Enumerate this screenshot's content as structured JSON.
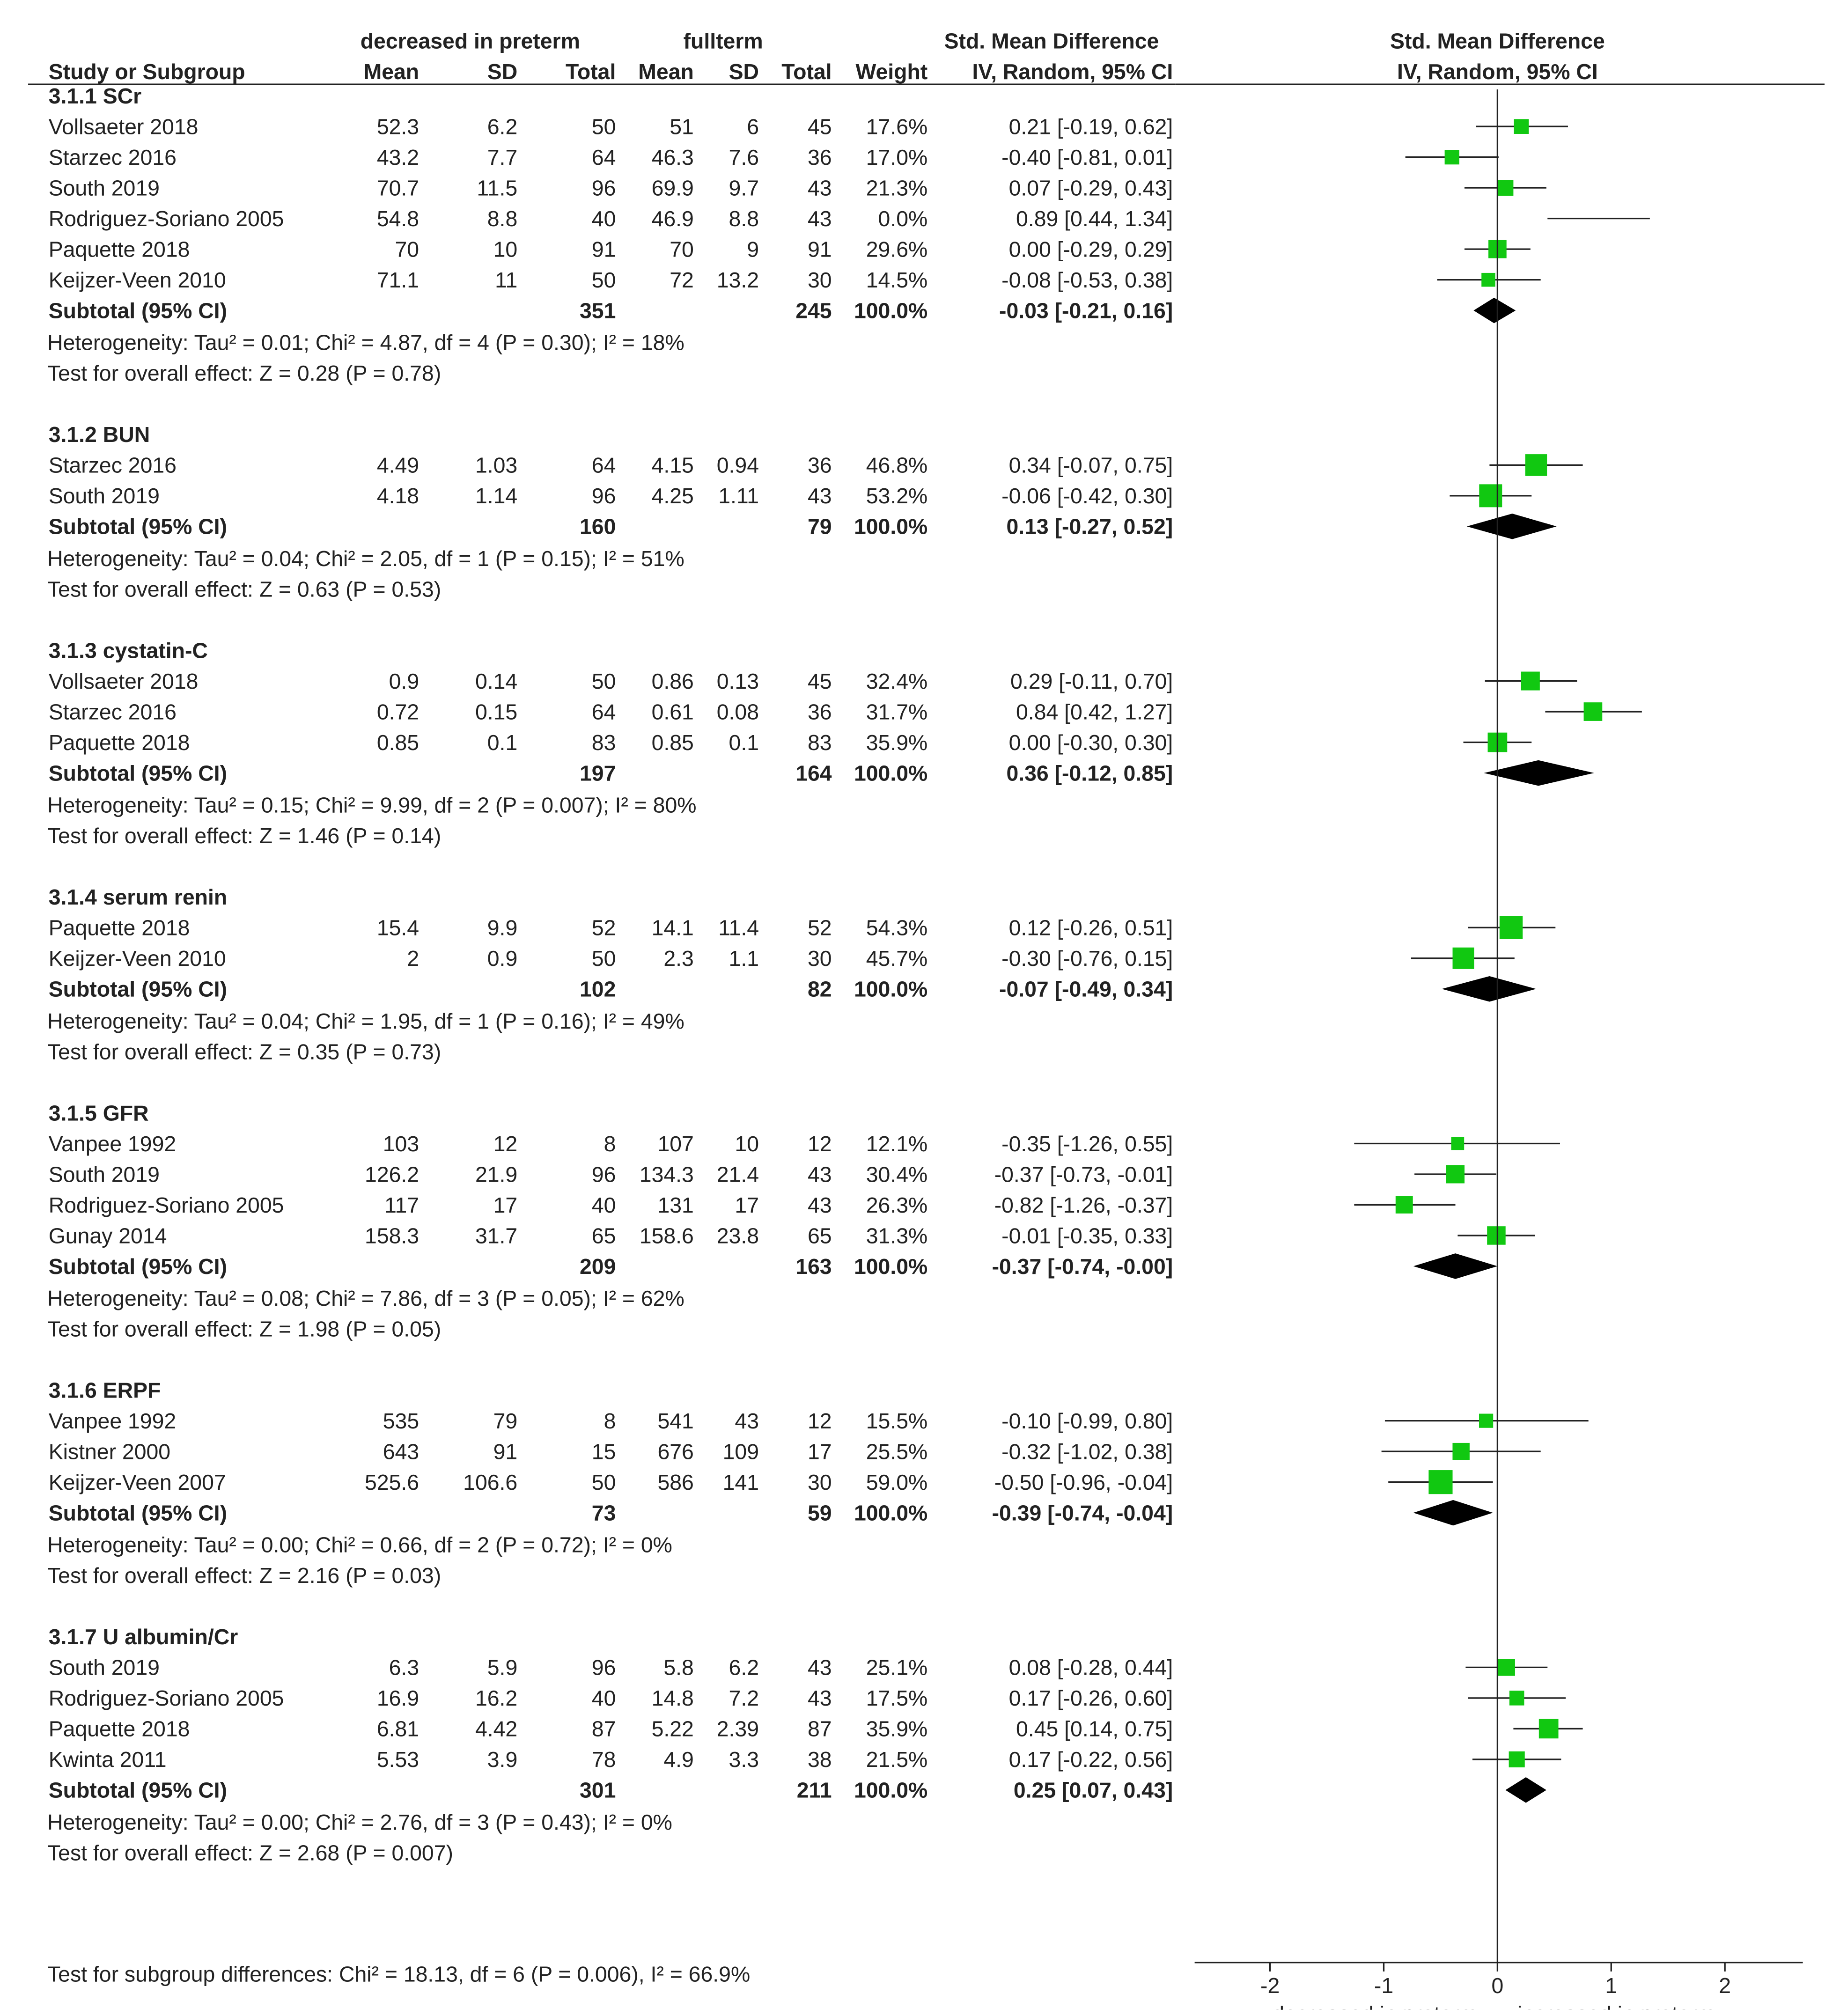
{
  "header": {
    "group1": "decreased in preterm",
    "group2": "fullterm",
    "smd_title": "Std. Mean Difference",
    "smd_method": "IV, Random, 95% CI",
    "plot_title": "Std. Mean Difference",
    "plot_method": "IV, Random, 95% CI",
    "col_study": "Study or Subgroup",
    "col_mean1": "Mean",
    "col_sd1": "SD",
    "col_total1": "Total",
    "col_mean2": "Mean",
    "col_sd2": "SD",
    "col_total2": "Total",
    "col_weight": "Weight"
  },
  "footer": {
    "subgroup_test": "Test for subgroup differences: Chi² = 18.13, df = 6 (P = 0.006), I² = 66.9%",
    "axis_left_label": "decreased in preterm",
    "axis_right_label": "increased in preterm"
  },
  "chart_data": {
    "type": "forest",
    "title": "Std. Mean Difference IV, Random, 95% CI",
    "xlim": [
      -2,
      2
    ],
    "ticks": [
      "-2",
      "-1",
      "0",
      "1",
      "2"
    ],
    "tick_values": [
      -2,
      -1,
      0,
      1,
      2
    ],
    "subgroups": [
      {
        "title": "3.1.1 SCr",
        "studies": [
          {
            "name": "Vollsaeter 2018",
            "m1": "52.3",
            "sd1": "6.2",
            "n1": "50",
            "m2": "51",
            "sd2": "6",
            "n2": "45",
            "weight": "17.6%",
            "ci_text": "0.21 [-0.19, 0.62]",
            "est": 0.21,
            "lo": -0.19,
            "hi": 0.62,
            "w": 17.6
          },
          {
            "name": "Starzec 2016",
            "m1": "43.2",
            "sd1": "7.7",
            "n1": "64",
            "m2": "46.3",
            "sd2": "7.6",
            "n2": "36",
            "weight": "17.0%",
            "ci_text": "-0.40 [-0.81, 0.01]",
            "est": -0.4,
            "lo": -0.81,
            "hi": 0.01,
            "w": 17.0
          },
          {
            "name": "South 2019",
            "m1": "70.7",
            "sd1": "11.5",
            "n1": "96",
            "m2": "69.9",
            "sd2": "9.7",
            "n2": "43",
            "weight": "21.3%",
            "ci_text": "0.07 [-0.29, 0.43]",
            "est": 0.07,
            "lo": -0.29,
            "hi": 0.43,
            "w": 21.3
          },
          {
            "name": "Rodriguez-Soriano 2005",
            "m1": "54.8",
            "sd1": "8.8",
            "n1": "40",
            "m2": "46.9",
            "sd2": "8.8",
            "n2": "43",
            "weight": "0.0%",
            "ci_text": "0.89 [0.44, 1.34]",
            "est": 0.89,
            "lo": 0.44,
            "hi": 1.34,
            "w": 0.0
          },
          {
            "name": "Paquette 2018",
            "m1": "70",
            "sd1": "10",
            "n1": "91",
            "m2": "70",
            "sd2": "9",
            "n2": "91",
            "weight": "29.6%",
            "ci_text": "0.00 [-0.29, 0.29]",
            "est": 0.0,
            "lo": -0.29,
            "hi": 0.29,
            "w": 29.6
          },
          {
            "name": "Keijzer-Veen 2010",
            "m1": "71.1",
            "sd1": "11",
            "n1": "50",
            "m2": "72",
            "sd2": "13.2",
            "n2": "30",
            "weight": "14.5%",
            "ci_text": "-0.08 [-0.53, 0.38]",
            "est": -0.08,
            "lo": -0.53,
            "hi": 0.38,
            "w": 14.5
          }
        ],
        "subtotal": {
          "label": "Subtotal (95% CI)",
          "n1": "351",
          "n2": "245",
          "weight": "100.0%",
          "ci_text": "-0.03 [-0.21, 0.16]",
          "est": -0.03,
          "lo": -0.21,
          "hi": 0.16
        },
        "heterogeneity": "Heterogeneity: Tau² = 0.01; Chi² = 4.87, df = 4 (P = 0.30); I² = 18%",
        "overall": "Test for overall effect: Z = 0.28 (P = 0.78)"
      },
      {
        "title": "3.1.2 BUN",
        "studies": [
          {
            "name": "Starzec 2016",
            "m1": "4.49",
            "sd1": "1.03",
            "n1": "64",
            "m2": "4.15",
            "sd2": "0.94",
            "n2": "36",
            "weight": "46.8%",
            "ci_text": "0.34 [-0.07, 0.75]",
            "est": 0.34,
            "lo": -0.07,
            "hi": 0.75,
            "w": 46.8
          },
          {
            "name": "South 2019",
            "m1": "4.18",
            "sd1": "1.14",
            "n1": "96",
            "m2": "4.25",
            "sd2": "1.11",
            "n2": "43",
            "weight": "53.2%",
            "ci_text": "-0.06 [-0.42, 0.30]",
            "est": -0.06,
            "lo": -0.42,
            "hi": 0.3,
            "w": 53.2
          }
        ],
        "subtotal": {
          "label": "Subtotal (95% CI)",
          "n1": "160",
          "n2": "79",
          "weight": "100.0%",
          "ci_text": "0.13 [-0.27, 0.52]",
          "est": 0.13,
          "lo": -0.27,
          "hi": 0.52
        },
        "heterogeneity": "Heterogeneity: Tau² = 0.04; Chi² = 2.05, df = 1 (P = 0.15); I² = 51%",
        "overall": "Test for overall effect: Z = 0.63 (P = 0.53)"
      },
      {
        "title": "3.1.3 cystatin-C",
        "studies": [
          {
            "name": "Vollsaeter 2018",
            "m1": "0.9",
            "sd1": "0.14",
            "n1": "50",
            "m2": "0.86",
            "sd2": "0.13",
            "n2": "45",
            "weight": "32.4%",
            "ci_text": "0.29 [-0.11, 0.70]",
            "est": 0.29,
            "lo": -0.11,
            "hi": 0.7,
            "w": 32.4
          },
          {
            "name": "Starzec 2016",
            "m1": "0.72",
            "sd1": "0.15",
            "n1": "64",
            "m2": "0.61",
            "sd2": "0.08",
            "n2": "36",
            "weight": "31.7%",
            "ci_text": "0.84 [0.42, 1.27]",
            "est": 0.84,
            "lo": 0.42,
            "hi": 1.27,
            "w": 31.7
          },
          {
            "name": "Paquette 2018",
            "m1": "0.85",
            "sd1": "0.1",
            "n1": "83",
            "m2": "0.85",
            "sd2": "0.1",
            "n2": "83",
            "weight": "35.9%",
            "ci_text": "0.00 [-0.30, 0.30]",
            "est": 0.0,
            "lo": -0.3,
            "hi": 0.3,
            "w": 35.9
          }
        ],
        "subtotal": {
          "label": "Subtotal (95% CI)",
          "n1": "197",
          "n2": "164",
          "weight": "100.0%",
          "ci_text": "0.36 [-0.12, 0.85]",
          "est": 0.36,
          "lo": -0.12,
          "hi": 0.85
        },
        "heterogeneity": "Heterogeneity: Tau² = 0.15; Chi² = 9.99, df = 2 (P = 0.007); I² = 80%",
        "overall": "Test for overall effect: Z = 1.46 (P = 0.14)"
      },
      {
        "title": "3.1.4 serum renin",
        "studies": [
          {
            "name": "Paquette 2018",
            "m1": "15.4",
            "sd1": "9.9",
            "n1": "52",
            "m2": "14.1",
            "sd2": "11.4",
            "n2": "52",
            "weight": "54.3%",
            "ci_text": "0.12 [-0.26, 0.51]",
            "est": 0.12,
            "lo": -0.26,
            "hi": 0.51,
            "w": 54.3
          },
          {
            "name": "Keijzer-Veen 2010",
            "m1": "2",
            "sd1": "0.9",
            "n1": "50",
            "m2": "2.3",
            "sd2": "1.1",
            "n2": "30",
            "weight": "45.7%",
            "ci_text": "-0.30 [-0.76, 0.15]",
            "est": -0.3,
            "lo": -0.76,
            "hi": 0.15,
            "w": 45.7
          }
        ],
        "subtotal": {
          "label": "Subtotal (95% CI)",
          "n1": "102",
          "n2": "82",
          "weight": "100.0%",
          "ci_text": "-0.07 [-0.49, 0.34]",
          "est": -0.07,
          "lo": -0.49,
          "hi": 0.34
        },
        "heterogeneity": "Heterogeneity: Tau² = 0.04; Chi² = 1.95, df = 1 (P = 0.16); I² = 49%",
        "overall": "Test for overall effect: Z = 0.35 (P = 0.73)"
      },
      {
        "title": "3.1.5 GFR",
        "studies": [
          {
            "name": "Vanpee 1992",
            "m1": "103",
            "sd1": "12",
            "n1": "8",
            "m2": "107",
            "sd2": "10",
            "n2": "12",
            "weight": "12.1%",
            "ci_text": "-0.35 [-1.26, 0.55]",
            "est": -0.35,
            "lo": -1.26,
            "hi": 0.55,
            "w": 12.1
          },
          {
            "name": "South 2019",
            "m1": "126.2",
            "sd1": "21.9",
            "n1": "96",
            "m2": "134.3",
            "sd2": "21.4",
            "n2": "43",
            "weight": "30.4%",
            "ci_text": "-0.37 [-0.73, -0.01]",
            "est": -0.37,
            "lo": -0.73,
            "hi": -0.01,
            "w": 30.4
          },
          {
            "name": "Rodriguez-Soriano 2005",
            "m1": "117",
            "sd1": "17",
            "n1": "40",
            "m2": "131",
            "sd2": "17",
            "n2": "43",
            "weight": "26.3%",
            "ci_text": "-0.82 [-1.26, -0.37]",
            "est": -0.82,
            "lo": -1.26,
            "hi": -0.37,
            "w": 26.3
          },
          {
            "name": "Gunay 2014",
            "m1": "158.3",
            "sd1": "31.7",
            "n1": "65",
            "m2": "158.6",
            "sd2": "23.8",
            "n2": "65",
            "weight": "31.3%",
            "ci_text": "-0.01 [-0.35, 0.33]",
            "est": -0.01,
            "lo": -0.35,
            "hi": 0.33,
            "w": 31.3
          }
        ],
        "subtotal": {
          "label": "Subtotal (95% CI)",
          "n1": "209",
          "n2": "163",
          "weight": "100.0%",
          "ci_text": "-0.37 [-0.74, -0.00]",
          "est": -0.37,
          "lo": -0.74,
          "hi": -0.0
        },
        "heterogeneity": "Heterogeneity: Tau² = 0.08; Chi² = 7.86, df = 3 (P = 0.05); I² = 62%",
        "overall": "Test for overall effect: Z = 1.98 (P = 0.05)"
      },
      {
        "title": "3.1.6 ERPF",
        "studies": [
          {
            "name": "Vanpee 1992",
            "m1": "535",
            "sd1": "79",
            "n1": "8",
            "m2": "541",
            "sd2": "43",
            "n2": "12",
            "weight": "15.5%",
            "ci_text": "-0.10 [-0.99, 0.80]",
            "est": -0.1,
            "lo": -0.99,
            "hi": 0.8,
            "w": 15.5
          },
          {
            "name": "Kistner 2000",
            "m1": "643",
            "sd1": "91",
            "n1": "15",
            "m2": "676",
            "sd2": "109",
            "n2": "17",
            "weight": "25.5%",
            "ci_text": "-0.32 [-1.02, 0.38]",
            "est": -0.32,
            "lo": -1.02,
            "hi": 0.38,
            "w": 25.5
          },
          {
            "name": "Keijzer-Veen 2007",
            "m1": "525.6",
            "sd1": "106.6",
            "n1": "50",
            "m2": "586",
            "sd2": "141",
            "n2": "30",
            "weight": "59.0%",
            "ci_text": "-0.50 [-0.96, -0.04]",
            "est": -0.5,
            "lo": -0.96,
            "hi": -0.04,
            "w": 59.0
          }
        ],
        "subtotal": {
          "label": "Subtotal (95% CI)",
          "n1": "73",
          "n2": "59",
          "weight": "100.0%",
          "ci_text": "-0.39 [-0.74, -0.04]",
          "est": -0.39,
          "lo": -0.74,
          "hi": -0.04
        },
        "heterogeneity": "Heterogeneity: Tau² = 0.00; Chi² = 0.66, df = 2 (P = 0.72); I² = 0%",
        "overall": "Test for overall effect: Z = 2.16 (P = 0.03)"
      },
      {
        "title": "3.1.7 U albumin/Cr",
        "studies": [
          {
            "name": "South 2019",
            "m1": "6.3",
            "sd1": "5.9",
            "n1": "96",
            "m2": "5.8",
            "sd2": "6.2",
            "n2": "43",
            "weight": "25.1%",
            "ci_text": "0.08 [-0.28, 0.44]",
            "est": 0.08,
            "lo": -0.28,
            "hi": 0.44,
            "w": 25.1
          },
          {
            "name": "Rodriguez-Soriano 2005",
            "m1": "16.9",
            "sd1": "16.2",
            "n1": "40",
            "m2": "14.8",
            "sd2": "7.2",
            "n2": "43",
            "weight": "17.5%",
            "ci_text": "0.17 [-0.26, 0.60]",
            "est": 0.17,
            "lo": -0.26,
            "hi": 0.6,
            "w": 17.5
          },
          {
            "name": "Paquette 2018",
            "m1": "6.81",
            "sd1": "4.42",
            "n1": "87",
            "m2": "5.22",
            "sd2": "2.39",
            "n2": "87",
            "weight": "35.9%",
            "ci_text": "0.45 [0.14, 0.75]",
            "est": 0.45,
            "lo": 0.14,
            "hi": 0.75,
            "w": 35.9
          },
          {
            "name": "Kwinta 2011",
            "m1": "5.53",
            "sd1": "3.9",
            "n1": "78",
            "m2": "4.9",
            "sd2": "3.3",
            "n2": "38",
            "weight": "21.5%",
            "ci_text": "0.17 [-0.22, 0.56]",
            "est": 0.17,
            "lo": -0.22,
            "hi": 0.56,
            "w": 21.5
          }
        ],
        "subtotal": {
          "label": "Subtotal (95% CI)",
          "n1": "301",
          "n2": "211",
          "weight": "100.0%",
          "ci_text": "0.25 [0.07, 0.43]",
          "est": 0.25,
          "lo": 0.07,
          "hi": 0.43
        },
        "heterogeneity": "Heterogeneity: Tau² = 0.00; Chi² = 2.76, df = 3 (P = 0.43); I² = 0%",
        "overall": "Test for overall effect: Z = 2.68 (P = 0.007)"
      }
    ]
  }
}
